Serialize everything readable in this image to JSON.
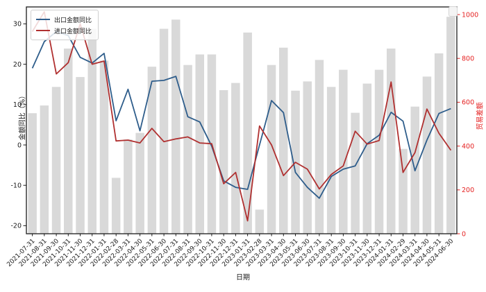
{
  "chart_data": {
    "type": "combo-bar-line",
    "title": "",
    "xlabel": "日期",
    "ylabel_left": "金额同比（%）",
    "ylabel_right": "贸易差额",
    "grid": false,
    "legend_position": "upper-left",
    "categories": [
      "2021-07-31",
      "2021-08-31",
      "2021-09-30",
      "2021-10-31",
      "2021-11-30",
      "2021-12-31",
      "2022-01-31",
      "2022-02-28",
      "2022-03-31",
      "2022-04-30",
      "2022-05-31",
      "2022-06-30",
      "2022-07-31",
      "2022-08-31",
      "2022-09-30",
      "2022-10-31",
      "2022-11-30",
      "2022-12-31",
      "2023-01-31",
      "2023-02-28",
      "2023-03-31",
      "2023-04-30",
      "2023-05-31",
      "2023-06-30",
      "2023-07-31",
      "2023-08-31",
      "2023-09-30",
      "2023-10-31",
      "2023-11-30",
      "2023-12-31",
      "2024-01-31",
      "2024-02-29",
      "2024-03-31",
      "2024-04-30",
      "2024-05-31",
      "2024-06-30"
    ],
    "series": [
      {
        "name": "出口金额同比",
        "type": "line",
        "axis": "left",
        "color": "#2e5d8b",
        "values": [
          19.0,
          25.6,
          28.1,
          27.1,
          21.7,
          20.3,
          22.7,
          6.0,
          13.8,
          3.5,
          15.8,
          16.0,
          17.0,
          7.0,
          5.7,
          -0.3,
          -8.9,
          -10.5,
          -11.0,
          0.0,
          11.0,
          8.0,
          -6.8,
          -10.5,
          -13.2,
          -7.8,
          -6.0,
          -5.2,
          0.3,
          2.4,
          8.1,
          5.9,
          -6.4,
          1.2,
          7.8,
          9.0
        ]
      },
      {
        "name": "进口金额同比",
        "type": "line",
        "axis": "left",
        "color": "#b03030",
        "values": [
          28.1,
          33.0,
          17.6,
          20.4,
          30.0,
          20.0,
          20.8,
          1.0,
          1.2,
          0.5,
          4.1,
          0.8,
          1.5,
          2.0,
          0.5,
          0.3,
          -9.6,
          -6.8,
          -18.8,
          4.7,
          0.0,
          -7.6,
          -4.3,
          -6.0,
          -10.9,
          -7.3,
          -5.2,
          3.4,
          0.2,
          1.1,
          15.6,
          -6.8,
          -1.9,
          8.9,
          2.9,
          -1.3
        ]
      },
      {
        "name": "贸易差额",
        "type": "bar",
        "axis": "right",
        "color": "#d9d9d9",
        "values": [
          550,
          585,
          670,
          845,
          715,
          935,
          790,
          255,
          430,
          460,
          762,
          935,
          977,
          770,
          818,
          818,
          655,
          688,
          918,
          110,
          770,
          849,
          653,
          695,
          793,
          670,
          748,
          552,
          685,
          748,
          845,
          387,
          580,
          717,
          823,
          990
        ]
      }
    ],
    "left_axis": {
      "ticks": [
        30,
        20,
        10,
        0,
        -10,
        -20
      ],
      "min": -22.0,
      "max": 34.2,
      "tick_color": "#1a1a1a"
    },
    "right_axis": {
      "ticks": [
        0,
        200,
        400,
        600,
        800,
        1000
      ],
      "min": 0,
      "max": 1000,
      "tick_color": "#e52222"
    },
    "legend": [
      "出口金额同比",
      "进口金额同比"
    ]
  }
}
